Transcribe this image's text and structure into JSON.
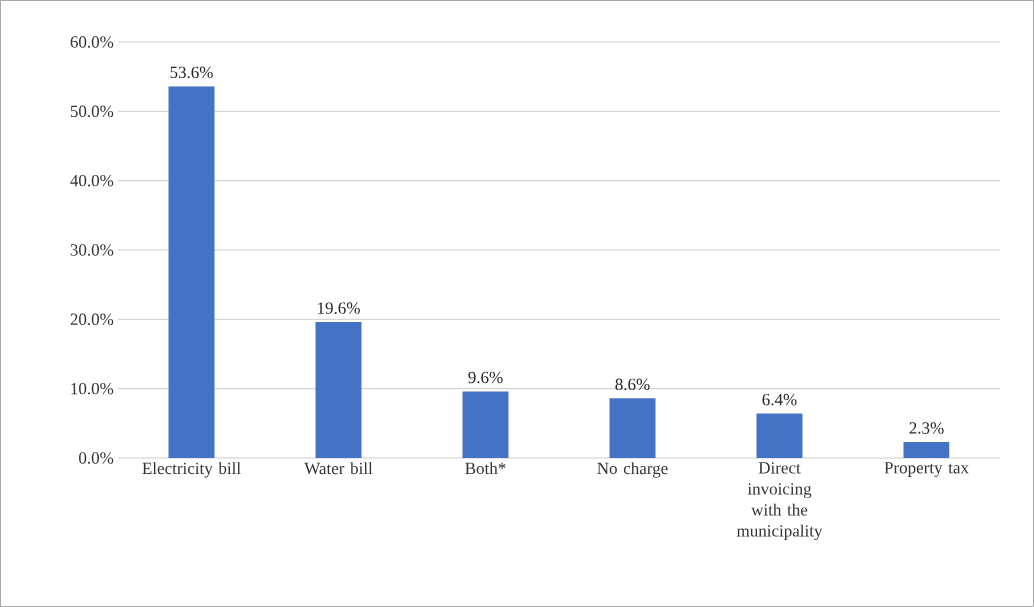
{
  "chart_data": {
    "type": "bar",
    "categories": [
      "Electricity bill",
      "Water bill",
      "Both*",
      "No charge",
      "Direct invoicing with the municipality",
      "Property tax"
    ],
    "values": [
      53.6,
      19.6,
      9.6,
      8.6,
      6.4,
      2.3
    ],
    "value_labels": [
      "53.6%",
      "19.6%",
      "9.6%",
      "8.6%",
      "6.4%",
      "2.3%"
    ],
    "color": "#4472c4",
    "ylim": [
      0,
      60
    ],
    "yticks": [
      {
        "value": 0,
        "label": "0.0%"
      },
      {
        "value": 10,
        "label": "10.0%"
      },
      {
        "value": 20,
        "label": "20.0%"
      },
      {
        "value": 30,
        "label": "30.0%"
      },
      {
        "value": 40,
        "label": "40.0%"
      },
      {
        "value": 50,
        "label": "50.0%"
      },
      {
        "value": 60,
        "label": "60.0%"
      }
    ],
    "grid": "y"
  }
}
